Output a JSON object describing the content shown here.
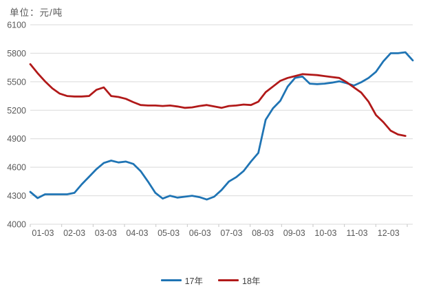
{
  "title": "单位：元/吨",
  "chart_data": {
    "type": "line",
    "title": "单位：元/吨",
    "xlabel": "",
    "ylabel": "元/吨",
    "ylim": [
      4000,
      6100
    ],
    "grid": "horizontal",
    "grid_color": "#d9d9d9",
    "axis_color": "#c6c6c6",
    "label_color": "#595959",
    "legend_position": "bottom-center",
    "y_ticks": [
      6100,
      5800,
      5500,
      5200,
      4900,
      4600,
      4300,
      4000
    ],
    "x_tick_labels": [
      "01-03",
      "02-03",
      "03-03",
      "04-03",
      "05-03",
      "06-03",
      "07-03",
      "08-03",
      "09-03",
      "10-03",
      "11-03",
      "12-03"
    ],
    "x_unit": "week",
    "series": [
      {
        "name": "17年",
        "color": "#1f74b4",
        "values": [
          4340,
          4275,
          4315,
          4315,
          4315,
          4315,
          4330,
          4420,
          4500,
          4580,
          4645,
          4670,
          4650,
          4660,
          4635,
          4560,
          4450,
          4330,
          4270,
          4300,
          4280,
          4290,
          4300,
          4285,
          4260,
          4290,
          4360,
          4450,
          4495,
          4560,
          4660,
          4750,
          5100,
          5220,
          5300,
          5450,
          5540,
          5555,
          5480,
          5475,
          5480,
          5490,
          5505,
          5485,
          5460,
          5495,
          5540,
          5605,
          5715,
          5800,
          5800,
          5810,
          5725
        ]
      },
      {
        "name": "18年",
        "color": "#b11919",
        "values": [
          5685,
          5590,
          5505,
          5430,
          5375,
          5350,
          5345,
          5345,
          5350,
          5415,
          5440,
          5350,
          5340,
          5320,
          5285,
          5255,
          5250,
          5250,
          5245,
          5250,
          5240,
          5225,
          5230,
          5245,
          5255,
          5240,
          5225,
          5245,
          5250,
          5260,
          5255,
          5290,
          5390,
          5450,
          5510,
          5540,
          5560,
          5580,
          5575,
          5570,
          5560,
          5550,
          5540,
          5495,
          5440,
          5385,
          5290,
          5150,
          5075,
          4985,
          4945,
          4930
        ]
      }
    ]
  },
  "legend": {
    "items": [
      {
        "label": "17年",
        "color": "#1f74b4"
      },
      {
        "label": "18年",
        "color": "#b11919"
      }
    ]
  }
}
